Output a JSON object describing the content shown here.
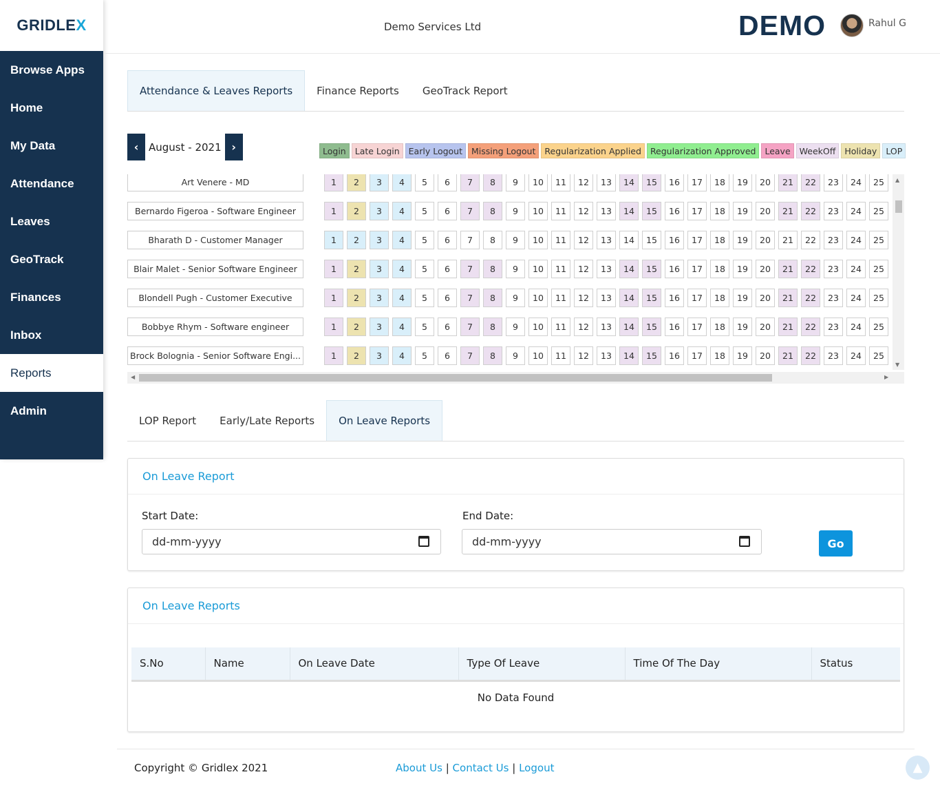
{
  "sidebar": {
    "logo": {
      "part1": "GRIDLE",
      "part2": "X"
    },
    "items": [
      {
        "label": "Browse Apps",
        "key": "browse-apps"
      },
      {
        "label": "Home",
        "key": "home"
      },
      {
        "label": "My Data",
        "key": "my-data"
      },
      {
        "label": "Attendance",
        "key": "attendance"
      },
      {
        "label": "Leaves",
        "key": "leaves"
      },
      {
        "label": "GeoTrack",
        "key": "geotrack"
      },
      {
        "label": "Finances",
        "key": "finances"
      },
      {
        "label": "Inbox",
        "key": "inbox"
      },
      {
        "label": "Reports",
        "key": "reports",
        "active": true
      },
      {
        "label": "Admin",
        "key": "admin"
      }
    ]
  },
  "header": {
    "company": "Demo Services Ltd",
    "brand": "DEMO",
    "user": "Rahul G"
  },
  "report_tabs": [
    {
      "label": "Attendance & Leaves Reports",
      "active": true
    },
    {
      "label": "Finance Reports",
      "active": false
    },
    {
      "label": "GeoTrack Report",
      "active": false
    }
  ],
  "calendar": {
    "month": "August - 2021",
    "prev_icon": "chevron-left-icon",
    "next_icon": "chevron-right-icon",
    "legend": [
      {
        "label": "Login",
        "color": "#8fbc8f"
      },
      {
        "label": "Late Login",
        "color": "#f7d4d4"
      },
      {
        "label": "Early Logout",
        "color": "#b7c4ee"
      },
      {
        "label": "Missing Logout",
        "color": "#f4a07a"
      },
      {
        "label": "Regularization Applied",
        "color": "#fbd38c"
      },
      {
        "label": "Regularization Approved",
        "color": "#90ee90"
      },
      {
        "label": "Leave",
        "color": "#f5a3c4"
      },
      {
        "label": "WeekOff",
        "color": "#ecdff0"
      },
      {
        "label": "Holiday",
        "color": "#ede3b0"
      },
      {
        "label": "LOP",
        "color": "#d9effa"
      }
    ],
    "day_colors": {
      "weekoff": "#ecdff0",
      "holiday": "#ede3b0",
      "lop": "#d9effa",
      "none": "#ffffff"
    },
    "days": [
      "1",
      "2",
      "3",
      "4",
      "5",
      "6",
      "7",
      "8",
      "9",
      "10",
      "11",
      "12",
      "13",
      "14",
      "15",
      "16",
      "17",
      "18",
      "19",
      "20",
      "21",
      "22",
      "23",
      "24",
      "25"
    ],
    "employees": [
      {
        "name": "Art Venere - MD",
        "pattern": "standard"
      },
      {
        "name": "Bernardo Figeroa - Software Engineer",
        "pattern": "standard"
      },
      {
        "name": "Bharath D - Customer Manager",
        "pattern": "alt"
      },
      {
        "name": "Blair Malet - Senior Software Engineer",
        "pattern": "standard"
      },
      {
        "name": "Blondell Pugh - Customer Executive",
        "pattern": "standard"
      },
      {
        "name": "Bobbye Rhym - Software engineer",
        "pattern": "standard"
      },
      {
        "name": "Brock Bolognia - Senior Software Engi...",
        "pattern": "standard"
      }
    ],
    "patterns": {
      "standard": [
        "weekoff",
        "holiday",
        "lop",
        "lop",
        "none",
        "none",
        "weekoff",
        "weekoff",
        "none",
        "none",
        "none",
        "none",
        "none",
        "weekoff",
        "weekoff",
        "none",
        "none",
        "none",
        "none",
        "none",
        "weekoff",
        "weekoff",
        "none",
        "none",
        "none"
      ],
      "alt": [
        "lop",
        "lop",
        "lop",
        "lop",
        "none",
        "none",
        "none",
        "none",
        "none",
        "none",
        "none",
        "none",
        "none",
        "none",
        "none",
        "none",
        "none",
        "none",
        "none",
        "none",
        "none",
        "none",
        "none",
        "none",
        "none"
      ]
    }
  },
  "sub_tabs": [
    {
      "label": "LOP Report",
      "active": false
    },
    {
      "label": "Early/Late Reports",
      "active": false
    },
    {
      "label": "On Leave Reports",
      "active": true
    }
  ],
  "filter_card": {
    "title": "On Leave Report",
    "start_label": "Start Date:",
    "start_placeholder": "dd-mm-yyyy",
    "end_label": "End Date:",
    "end_placeholder": "dd-mm-yyyy",
    "go_label": "Go"
  },
  "table_card": {
    "title": "On Leave Reports",
    "columns": [
      "S.No",
      "Name",
      "On Leave Date",
      "Type Of Leave",
      "Time Of The Day",
      "Status"
    ],
    "empty_text": "No Data Found"
  },
  "footer": {
    "copyright": "Copyright © Gridlex 2021",
    "links": [
      "About Us",
      "Contact Us",
      "Logout"
    ],
    "separator": "|",
    "to_top_icon": "arrow-up-icon"
  }
}
